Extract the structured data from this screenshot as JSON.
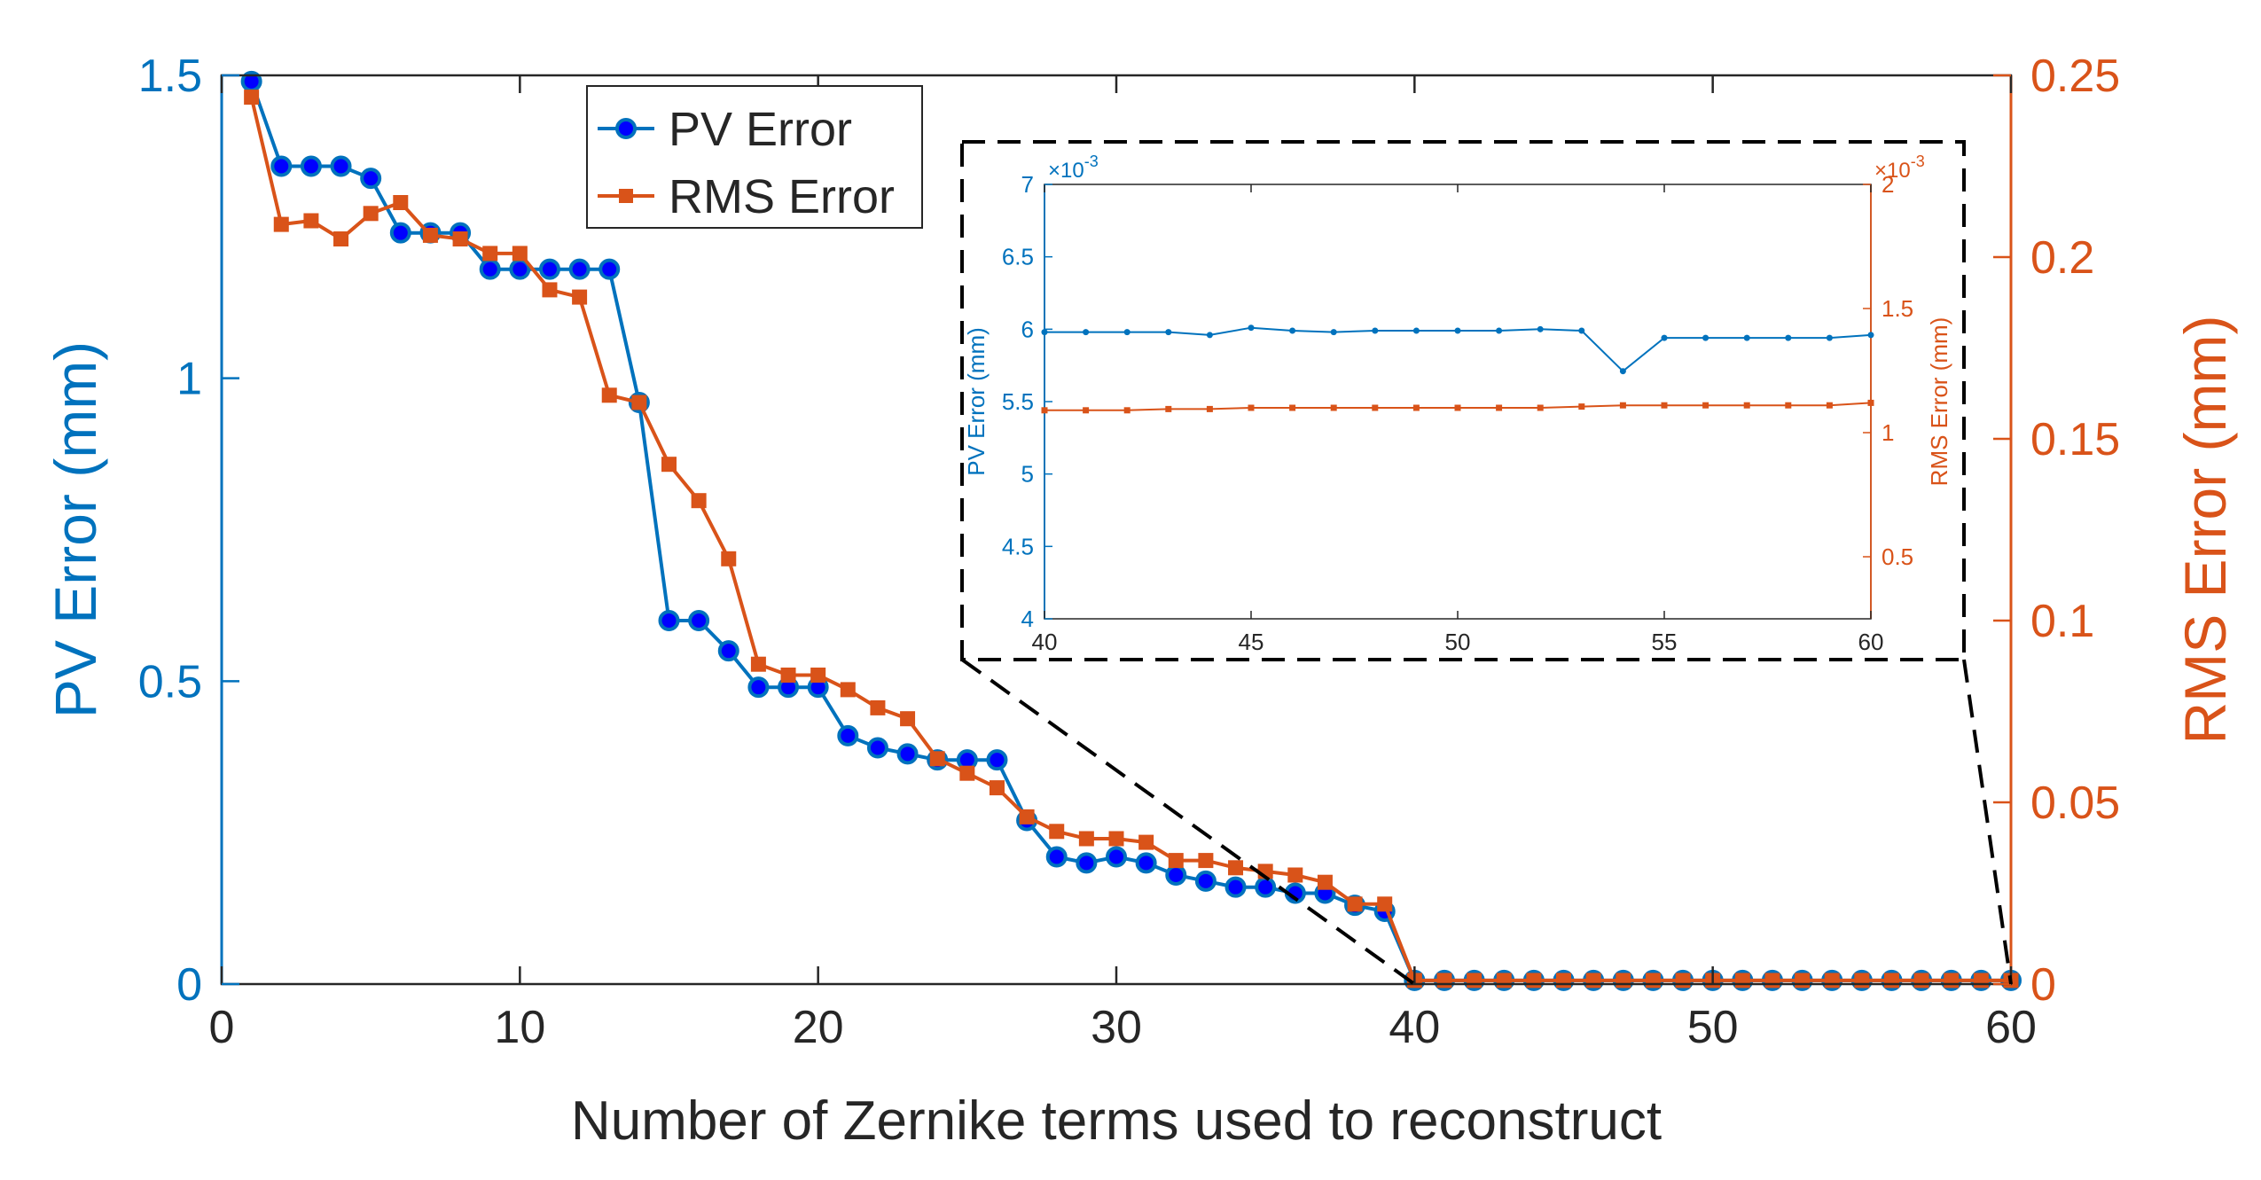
{
  "colors": {
    "pv": "#0072BD",
    "rms": "#D95319",
    "marker_fill": "#0000FF",
    "axis": "#262626",
    "zoom_box": "#000000"
  },
  "chart_data": [
    {
      "id": "main",
      "type": "line",
      "title": "",
      "xlabel": "Number of Zernike terms used to reconstruct",
      "ylabel_left": "PV Error (mm)",
      "ylabel_right": "RMS Error (mm)",
      "xlim": [
        0,
        60
      ],
      "ylim_left": [
        0,
        1.5
      ],
      "ylim_right": [
        0,
        0.25
      ],
      "xticks": [
        "0",
        "10",
        "20",
        "30",
        "40",
        "50",
        "60"
      ],
      "yticks_left": [
        "0",
        "0.5",
        "1",
        "1.5"
      ],
      "yticks_right": [
        "0",
        "0.05",
        "0.1",
        "0.15",
        "0.2",
        "0.25"
      ],
      "legend_position": "top-left",
      "x": [
        1,
        2,
        3,
        4,
        5,
        6,
        7,
        8,
        9,
        10,
        11,
        12,
        13,
        14,
        15,
        16,
        17,
        18,
        19,
        20,
        21,
        22,
        23,
        24,
        25,
        26,
        27,
        28,
        29,
        30,
        31,
        32,
        33,
        34,
        35,
        36,
        37,
        38,
        39,
        40,
        41,
        42,
        43,
        44,
        45,
        46,
        47,
        48,
        49,
        50,
        51,
        52,
        53,
        54,
        55,
        56,
        57,
        58,
        59,
        60
      ],
      "series": [
        {
          "name": "PV Error",
          "axis": "left",
          "marker": "circle",
          "values": [
            1.49,
            1.35,
            1.35,
            1.35,
            1.33,
            1.24,
            1.24,
            1.24,
            1.18,
            1.18,
            1.18,
            1.18,
            1.18,
            0.96,
            0.6,
            0.6,
            0.55,
            0.49,
            0.49,
            0.49,
            0.41,
            0.39,
            0.38,
            0.37,
            0.37,
            0.37,
            0.27,
            0.21,
            0.2,
            0.21,
            0.2,
            0.18,
            0.17,
            0.16,
            0.16,
            0.15,
            0.15,
            0.13,
            0.12,
            0.006,
            0.006,
            0.006,
            0.006,
            0.006,
            0.006,
            0.006,
            0.006,
            0.006,
            0.006,
            0.006,
            0.006,
            0.006,
            0.006,
            0.006,
            0.006,
            0.006,
            0.006,
            0.006,
            0.006,
            0.006
          ]
        },
        {
          "name": "RMS Error",
          "axis": "right",
          "marker": "square",
          "values": [
            0.244,
            0.209,
            0.21,
            0.205,
            0.212,
            0.215,
            0.206,
            0.205,
            0.201,
            0.201,
            0.191,
            0.189,
            0.162,
            0.16,
            0.143,
            0.133,
            0.117,
            0.088,
            0.085,
            0.085,
            0.081,
            0.076,
            0.073,
            0.062,
            0.058,
            0.054,
            0.046,
            0.042,
            0.04,
            0.04,
            0.039,
            0.034,
            0.034,
            0.032,
            0.031,
            0.03,
            0.028,
            0.022,
            0.022,
            0.001,
            0.001,
            0.001,
            0.001,
            0.001,
            0.001,
            0.001,
            0.001,
            0.001,
            0.001,
            0.001,
            0.001,
            0.001,
            0.001,
            0.001,
            0.001,
            0.001,
            0.001,
            0.001,
            0.001,
            0.001
          ]
        }
      ]
    },
    {
      "id": "inset",
      "type": "line",
      "title": "",
      "xlabel": "",
      "ylabel_left": "PV Error (mm)",
      "ylabel_right": "RMS Error (mm)",
      "left_exponent_base": "×10",
      "left_exponent_power": "-3",
      "right_exponent_base": "×10",
      "right_exponent_power": "-3",
      "xlim": [
        40,
        60
      ],
      "ylim_left": [
        4,
        7
      ],
      "ylim_right": [
        0.25,
        2
      ],
      "xticks": [
        "40",
        "45",
        "50",
        "55",
        "60"
      ],
      "yticks_left": [
        "4",
        "4.5",
        "5",
        "5.5",
        "6",
        "6.5",
        "7"
      ],
      "yticks_right": [
        "0.5",
        "1",
        "1.5",
        "2"
      ],
      "x": [
        40,
        41,
        42,
        43,
        44,
        45,
        46,
        47,
        48,
        49,
        50,
        51,
        52,
        53,
        54,
        55,
        56,
        57,
        58,
        59,
        60
      ],
      "series": [
        {
          "name": "PV Error",
          "axis": "left",
          "values": [
            5.98,
            5.98,
            5.98,
            5.98,
            5.96,
            6.01,
            5.99,
            5.98,
            5.99,
            5.99,
            5.99,
            5.99,
            6.0,
            5.99,
            5.71,
            5.94,
            5.94,
            5.94,
            5.94,
            5.94,
            5.96
          ]
        },
        {
          "name": "RMS Error",
          "axis": "right",
          "values": [
            1.09,
            1.09,
            1.09,
            1.095,
            1.095,
            1.1,
            1.1,
            1.1,
            1.1,
            1.1,
            1.1,
            1.1,
            1.1,
            1.105,
            1.11,
            1.11,
            1.11,
            1.11,
            1.11,
            1.11,
            1.12
          ]
        }
      ]
    }
  ]
}
